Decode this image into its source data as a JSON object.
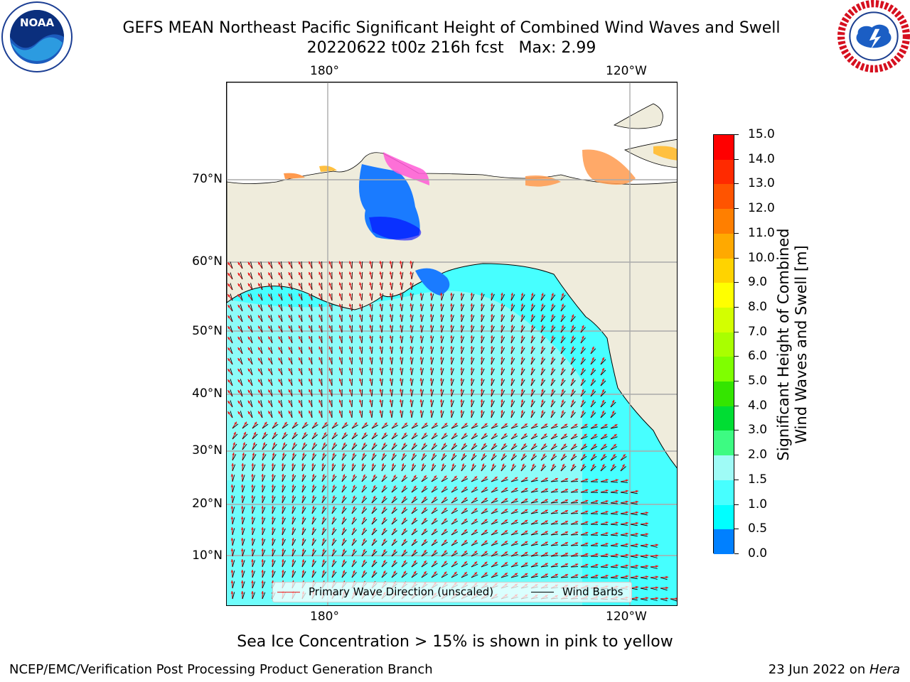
{
  "title": {
    "line1": "GEFS MEAN Northeast Pacific Significant Height of Combined Wind Waves and Swell",
    "line2": "20220622 t00z 216h fcst   Max: 2.99"
  },
  "logos": {
    "left": {
      "icon": "noaa-logo-icon",
      "text": "NOAA"
    },
    "right": {
      "icon": "nws-logo-icon",
      "text": "NATIONAL WEATHER SERVICE"
    }
  },
  "map": {
    "lon_labels_top": [
      "180°",
      "120°W"
    ],
    "lon_labels_bottom": [
      "180°",
      "120°W"
    ],
    "lat_labels": [
      "70°N",
      "60°N",
      "50°N",
      "40°N",
      "30°N",
      "20°N",
      "10°N"
    ],
    "legend": {
      "wave_label": "Primary Wave Direction (unscaled)",
      "wind_label": "Wind Barbs",
      "wave_color": "#e8191a",
      "wind_color": "#000000"
    },
    "colors": {
      "land": "#efecdc",
      "ocean_low": "#00ffff",
      "ocean_mid": "#47ffff",
      "ocean_high": "#9ffbf6",
      "sea_ice": "#ff9a4d"
    }
  },
  "colorbar": {
    "title_line1": "Significant Height of Combined",
    "title_line2": "Wind Waves and Swell [m]",
    "ticks": [
      "15.0",
      "14.0",
      "13.0",
      "12.0",
      "11.0",
      "10.0",
      "9.0",
      "8.0",
      "7.0",
      "6.0",
      "5.0",
      "4.0",
      "3.0",
      "2.0",
      "1.5",
      "1.0",
      "0.5",
      "0.0"
    ],
    "segments": [
      "#ff0000",
      "#ff2a00",
      "#ff5400",
      "#ff7f00",
      "#ffa900",
      "#ffd300",
      "#ffff00",
      "#d3ff00",
      "#a9ff00",
      "#7fff00",
      "#34e500",
      "#00dd33",
      "#3dfb82",
      "#9ffbf6",
      "#47ffff",
      "#00ffff",
      "#0080ff",
      "#0000ff"
    ]
  },
  "note": "Sea Ice Concentration > 15% is shown in pink to yellow",
  "footer": {
    "left": "NCEP/EMC/Verification Post Processing Product Generation Branch",
    "right_prefix": "23 Jun 2022 on ",
    "right_host": "Hera"
  }
}
